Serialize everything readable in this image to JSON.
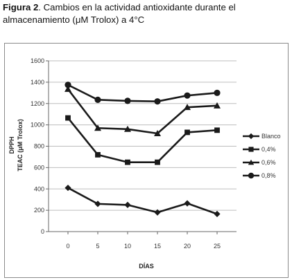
{
  "caption": {
    "lead": "Figura 2",
    "text": ". Cambios en la actividad antioxidante durante el almacenamiento (μM Trolox) a 4°C"
  },
  "chart_data": {
    "type": "line",
    "xlabel": "DÍAS",
    "ylabel_line1": "DPPH",
    "ylabel_line2": "TEAC (μM Trolox)",
    "x": [
      0,
      5,
      10,
      15,
      20,
      25
    ],
    "ylim": [
      0,
      1600
    ],
    "yticks": [
      0,
      200,
      400,
      600,
      800,
      1000,
      1200,
      1400,
      1600
    ],
    "xtick_labels": [
      "0",
      "5",
      "10",
      "15",
      "20",
      "25"
    ],
    "ytick_labels": [
      "0",
      "200",
      "400",
      "600",
      "800",
      "1000",
      "1200",
      "1400",
      "1600"
    ],
    "grid": "horizontal",
    "legend_position": "right",
    "line_color": "#1a1a1a",
    "series": [
      {
        "name": "Blanco",
        "marker": "diamond",
        "values": [
          410,
          260,
          250,
          180,
          265,
          165
        ]
      },
      {
        "name": "0,4%",
        "marker": "square",
        "values": [
          1065,
          720,
          650,
          650,
          930,
          950
        ]
      },
      {
        "name": "0,6%",
        "marker": "triangle",
        "values": [
          1335,
          970,
          960,
          920,
          1165,
          1180
        ]
      },
      {
        "name": "0,8%",
        "marker": "circle",
        "values": [
          1375,
          1235,
          1225,
          1220,
          1275,
          1300
        ]
      }
    ]
  }
}
